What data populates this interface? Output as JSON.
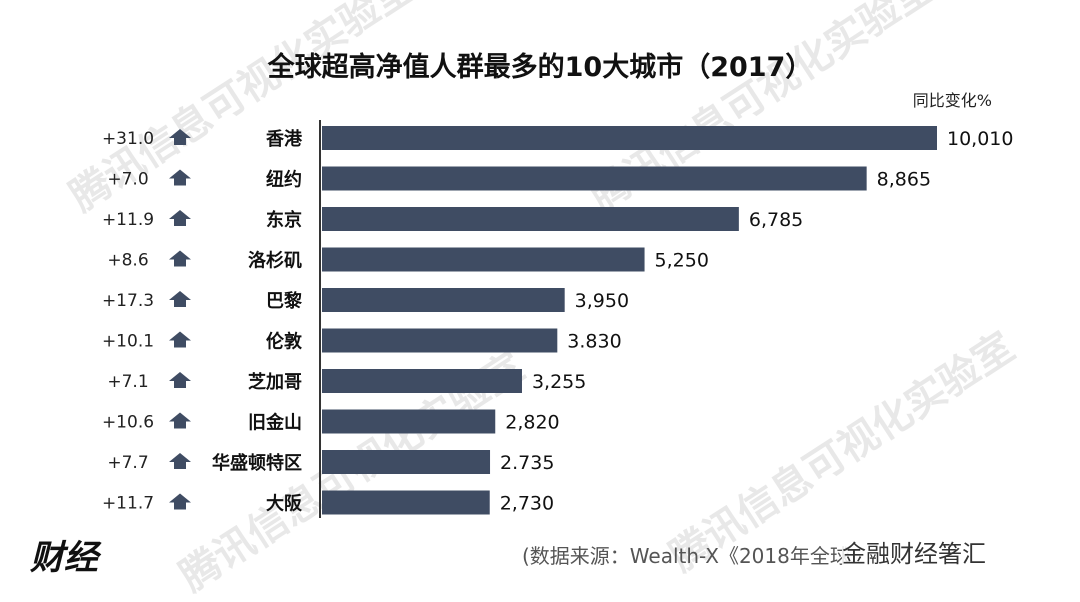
{
  "chart_data": {
    "type": "bar",
    "orientation": "horizontal",
    "title": "全球超高净值人群最多的10大城市（2017）",
    "change_header": "同比变化%",
    "categories": [
      "香港",
      "纽约",
      "东京",
      "洛杉矶",
      "巴黎",
      "伦敦",
      "芝加哥",
      "旧金山",
      "华盛顿特区",
      "大阪"
    ],
    "values": [
      10010,
      8865,
      6785,
      5250,
      3950,
      3830,
      3255,
      2820,
      2735,
      2730
    ],
    "value_labels": [
      "10,010",
      "8,865",
      "6,785",
      "5,250",
      "3,950",
      "3.830",
      "3,255",
      "2,820",
      "2.735",
      "2,730"
    ],
    "changes": [
      "+31.0",
      "+7.0",
      "+11.9",
      "+8.6",
      "+17.3",
      "+10.1",
      "+7.1",
      "+10.6",
      "+7.7",
      "+11.7"
    ],
    "change_direction": "up",
    "xlim": [
      0,
      10010
    ],
    "grid": false,
    "bar_color": "#3f4c63",
    "arrow_color": "#3f4c63"
  },
  "footer": {
    "source": "(数据来源：Wealth-X《2018年全球",
    "brand": "金融财经箸汇",
    "logo": "财经"
  },
  "watermark": {
    "text_1": "腾讯信息可视化实验室",
    "text_2": "腾讯信息可视化实验室",
    "text_3": "腾讯信息可视化实验室",
    "text_4": "腾讯信息可视化实验室"
  }
}
